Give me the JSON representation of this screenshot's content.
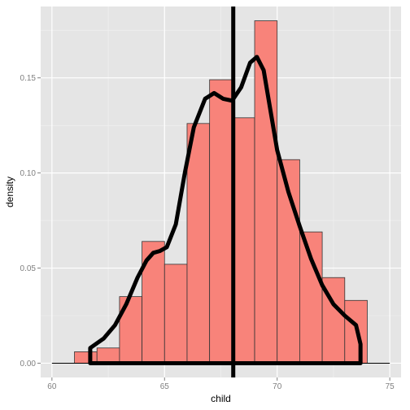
{
  "chart_data": {
    "type": "histogram",
    "xlabel": "child",
    "ylabel": "density",
    "xlim": [
      59.5,
      75.5
    ],
    "ylim": [
      -0.0075,
      0.1875
    ],
    "x_ticks": [
      60,
      65,
      70,
      75
    ],
    "x_tick_labels": [
      "60",
      "65",
      "70",
      "75"
    ],
    "y_ticks": [
      0.0,
      0.05,
      0.1,
      0.15
    ],
    "y_tick_labels": [
      "0.00",
      "0.05",
      "0.10",
      "0.15"
    ],
    "grid": true,
    "bars": [
      {
        "x0": 61.0,
        "x1": 62.0,
        "density": 0.006
      },
      {
        "x0": 62.0,
        "x1": 63.0,
        "density": 0.008
      },
      {
        "x0": 63.0,
        "x1": 64.0,
        "density": 0.035
      },
      {
        "x0": 64.0,
        "x1": 65.0,
        "density": 0.064
      },
      {
        "x0": 65.0,
        "x1": 66.0,
        "density": 0.052
      },
      {
        "x0": 66.0,
        "x1": 67.0,
        "density": 0.126
      },
      {
        "x0": 67.0,
        "x1": 68.0,
        "density": 0.149
      },
      {
        "x0": 68.0,
        "x1": 69.0,
        "density": 0.129
      },
      {
        "x0": 69.0,
        "x1": 70.0,
        "density": 0.18
      },
      {
        "x0": 70.0,
        "x1": 71.0,
        "density": 0.107
      },
      {
        "x0": 71.0,
        "x1": 72.0,
        "density": 0.069
      },
      {
        "x0": 72.0,
        "x1": 73.0,
        "density": 0.045
      },
      {
        "x0": 73.0,
        "x1": 74.0,
        "density": 0.033
      }
    ],
    "density_curve": {
      "x": [
        61.7,
        61.7,
        62.3,
        62.8,
        63.3,
        63.8,
        64.2,
        64.5,
        64.8,
        65.1,
        65.5,
        65.9,
        66.3,
        66.8,
        67.2,
        67.6,
        68.0,
        68.4,
        68.8,
        69.1,
        69.4,
        69.7,
        70.0,
        70.5,
        71.0,
        71.5,
        72.0,
        72.5,
        73.0,
        73.5,
        73.7,
        73.7
      ],
      "y": [
        0.0,
        0.008,
        0.013,
        0.02,
        0.031,
        0.045,
        0.054,
        0.058,
        0.059,
        0.061,
        0.073,
        0.1,
        0.124,
        0.139,
        0.142,
        0.139,
        0.138,
        0.145,
        0.158,
        0.161,
        0.154,
        0.133,
        0.112,
        0.09,
        0.072,
        0.055,
        0.041,
        0.031,
        0.025,
        0.02,
        0.01,
        0.0
      ]
    },
    "vline_x": 68.05,
    "baseline_range": [
      60.0,
      75.0
    ],
    "colors": {
      "panel": "#e5e5e5",
      "grid_major": "#ffffff",
      "grid_minor": "#f2f2f2",
      "bar_fill": "#f8837a",
      "bar_stroke": "#333333",
      "curve": "#000000",
      "tick_label": "#7f7f7f"
    }
  }
}
